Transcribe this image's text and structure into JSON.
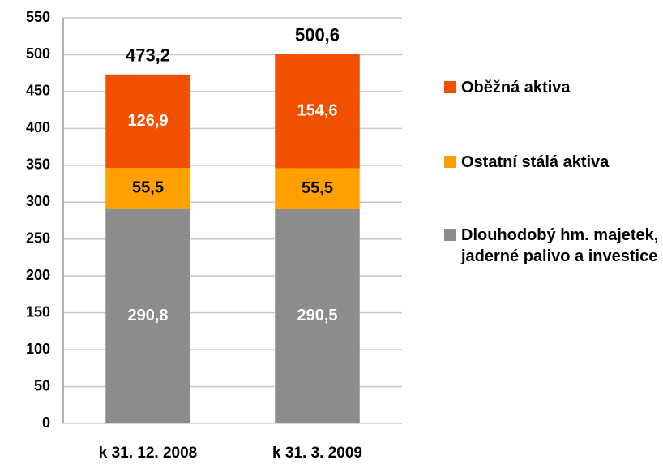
{
  "chart_data": {
    "type": "stacked_bar",
    "categories": [
      "k 31. 12. 2008",
      "k 31. 3. 2009"
    ],
    "series": [
      {
        "name": "Dlouhodobý hm. majetek, jaderné palivo a investice",
        "color": "#8c8c8c",
        "values": [
          290.8,
          290.5
        ],
        "value_labels": [
          "290,8",
          "290,5"
        ]
      },
      {
        "name": "Ostatní stálá aktiva",
        "color": "#ffa000",
        "values": [
          55.5,
          55.5
        ],
        "value_labels": [
          "55,5",
          "55,5"
        ]
      },
      {
        "name": "Oběžná aktiva",
        "color": "#f05000",
        "values": [
          126.9,
          154.6
        ],
        "value_labels": [
          "126,9",
          "154,6"
        ]
      }
    ],
    "totals": [
      473.2,
      500.6
    ],
    "total_labels": [
      "473,2",
      "500,6"
    ],
    "ylim": [
      0,
      550
    ],
    "yticks": [
      0,
      50,
      100,
      150,
      200,
      250,
      300,
      350,
      400,
      450,
      500,
      550
    ],
    "grid": true,
    "legend": "right"
  }
}
